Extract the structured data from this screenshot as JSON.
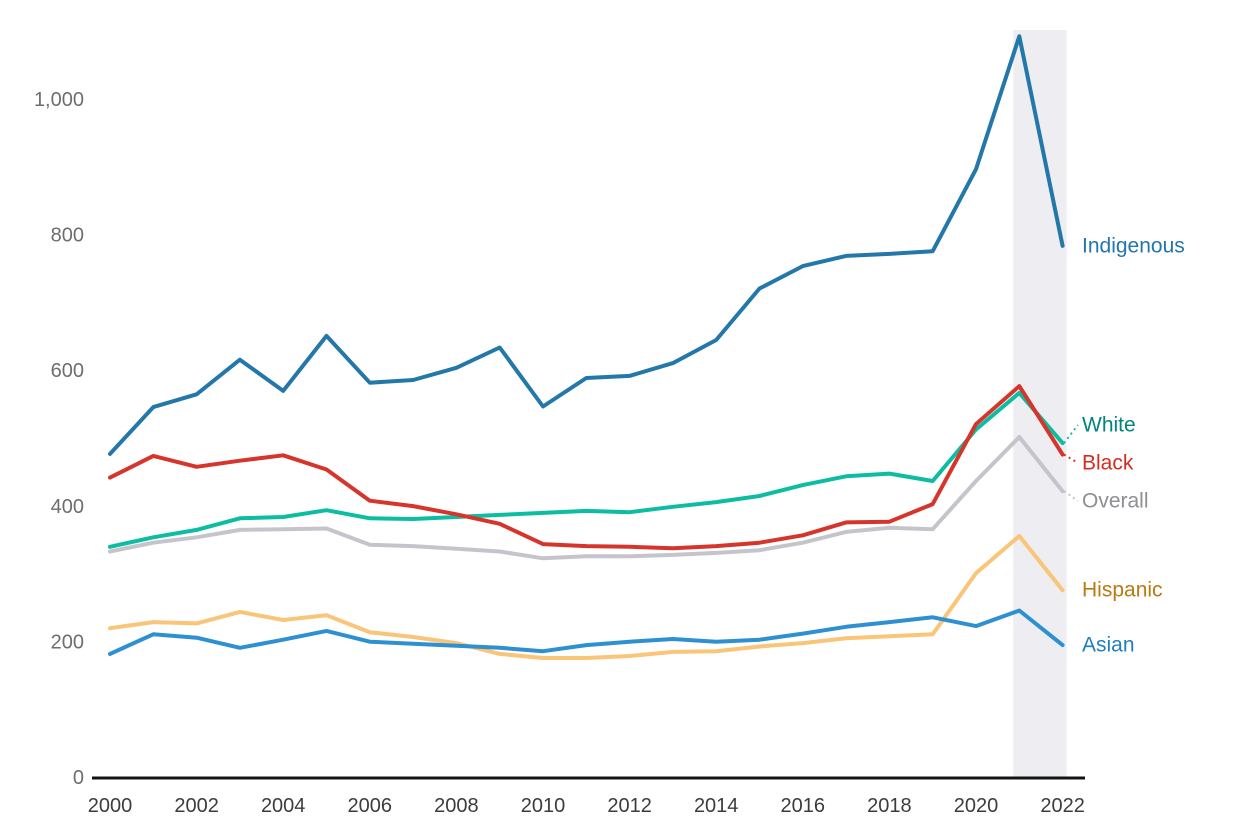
{
  "chart_data": {
    "type": "line",
    "title": "",
    "xlabel": "",
    "ylabel": "",
    "grid": false,
    "x": [
      2000,
      2001,
      2002,
      2003,
      2004,
      2005,
      2006,
      2007,
      2008,
      2009,
      2010,
      2011,
      2012,
      2013,
      2014,
      2015,
      2016,
      2017,
      2018,
      2019,
      2020,
      2021,
      2022
    ],
    "x_tick_labels": [
      "2000",
      "2002",
      "2004",
      "2006",
      "2008",
      "2010",
      "2012",
      "2014",
      "2016",
      "2018",
      "2020",
      "2022"
    ],
    "x_tick_years": [
      2000,
      2002,
      2004,
      2006,
      2008,
      2010,
      2012,
      2014,
      2016,
      2018,
      2020,
      2022
    ],
    "y_ticks": [
      0,
      200,
      400,
      600,
      800,
      1000
    ],
    "y_tick_labels": [
      "0",
      "200",
      "400",
      "600",
      "800",
      "1,000"
    ],
    "ylim": [
      0,
      1120
    ],
    "legend_position": "right-end-labels",
    "highlight_band": {
      "x_start": 2021,
      "x_end": 2022,
      "color": "#ededf2"
    },
    "axis_line_color": "#141414",
    "series": [
      {
        "name": "Indigenous",
        "line_color": "#2478a9",
        "label_color": "#2176ad",
        "values": [
          478,
          547,
          566,
          617,
          571,
          652,
          583,
          587,
          605,
          635,
          548,
          590,
          593,
          612,
          646,
          722,
          755,
          770,
          773,
          777,
          898,
          1094,
          785
        ]
      },
      {
        "name": "White",
        "line_color": "#0dbda1",
        "label_color": "#00857c",
        "values": [
          341,
          355,
          366,
          383,
          385,
          395,
          383,
          382,
          385,
          388,
          391,
          394,
          392,
          400,
          407,
          416,
          432,
          445,
          449,
          438,
          514,
          568,
          494
        ]
      },
      {
        "name": "Black",
        "line_color": "#d6352b",
        "label_color": "#d52b21",
        "values": [
          443,
          475,
          459,
          468,
          476,
          455,
          409,
          401,
          389,
          375,
          345,
          342,
          341,
          339,
          342,
          347,
          358,
          377,
          378,
          404,
          522,
          578,
          477
        ]
      },
      {
        "name": "Overall",
        "line_color": "#c6c4cb",
        "label_color": "#8e8e93",
        "values": [
          334,
          347,
          355,
          366,
          367,
          368,
          344,
          342,
          338,
          334,
          324,
          327,
          327,
          329,
          332,
          336,
          347,
          363,
          369,
          367,
          438,
          503,
          423
        ]
      },
      {
        "name": "Hispanic",
        "line_color": "#f8c579",
        "label_color": "#b97a12",
        "values": [
          221,
          230,
          228,
          245,
          233,
          240,
          215,
          208,
          199,
          183,
          177,
          177,
          180,
          186,
          187,
          194,
          199,
          206,
          209,
          212,
          302,
          357,
          277
        ]
      },
      {
        "name": "Asian",
        "line_color": "#2e90d1",
        "label_color": "#1e7ec0",
        "values": [
          183,
          212,
          207,
          192,
          204,
          217,
          201,
          198,
          195,
          192,
          187,
          196,
          201,
          205,
          201,
          204,
          213,
          223,
          230,
          237,
          224,
          247,
          196
        ]
      }
    ]
  }
}
